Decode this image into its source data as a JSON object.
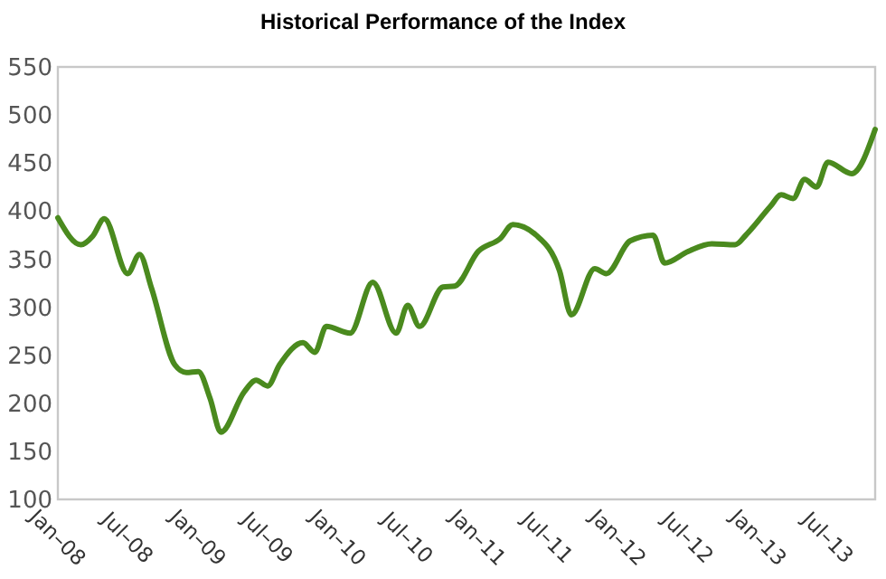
{
  "chart_data": {
    "type": "line",
    "title": "Historical Performance of the Index",
    "x": [
      "2008-01",
      "2008-03",
      "2008-04",
      "2008-05",
      "2008-07",
      "2008-08",
      "2008-09",
      "2008-11",
      "2008-12",
      "2009-01",
      "2009-02",
      "2009-03",
      "2009-05",
      "2009-06",
      "2009-07",
      "2009-08",
      "2009-10",
      "2009-11",
      "2009-12",
      "2010-02",
      "2010-04",
      "2010-06",
      "2010-07",
      "2010-08",
      "2010-10",
      "2010-11",
      "2011-01",
      "2011-03",
      "2011-04",
      "2011-06",
      "2011-08",
      "2011-09",
      "2011-11",
      "2011-12",
      "2012-02",
      "2012-04",
      "2012-05",
      "2012-07",
      "2012-09",
      "2012-11",
      "2012-12",
      "2013-02",
      "2013-03",
      "2013-04",
      "2013-05",
      "2013-06",
      "2013-07",
      "2013-09",
      "2013-11"
    ],
    "series": [
      {
        "color": "#4a8a1e",
        "values": [
          393,
          365,
          374,
          392,
          335,
          355,
          320,
          240,
          232,
          233,
          205,
          170,
          212,
          224,
          218,
          240,
          263,
          253,
          280,
          273,
          326,
          273,
          302,
          280,
          321,
          322,
          358,
          372,
          386,
          375,
          338,
          292,
          340,
          335,
          369,
          375,
          346,
          358,
          366,
          365,
          376,
          405,
          417,
          413,
          433,
          425,
          451,
          439,
          485
        ]
      }
    ],
    "xlim": [
      "2008-01",
      "2013-11"
    ],
    "xticks": [
      {
        "value": "2008-01",
        "label": "Jan–08"
      },
      {
        "value": "2008-07",
        "label": "Jul–08"
      },
      {
        "value": "2009-01",
        "label": "Jan–09"
      },
      {
        "value": "2009-07",
        "label": "Jul–09"
      },
      {
        "value": "2010-01",
        "label": "Jan–10"
      },
      {
        "value": "2010-07",
        "label": "Jul–10"
      },
      {
        "value": "2011-01",
        "label": "Jan–11"
      },
      {
        "value": "2011-07",
        "label": "Jul–11"
      },
      {
        "value": "2012-01",
        "label": "Jan–12"
      },
      {
        "value": "2012-07",
        "label": "Jul–12"
      },
      {
        "value": "2013-01",
        "label": "Jan–13"
      },
      {
        "value": "2013-07",
        "label": "Jul–13"
      }
    ],
    "ylim": [
      100,
      550
    ],
    "yticks": [
      100,
      150,
      200,
      250,
      300,
      350,
      400,
      450,
      500,
      550
    ],
    "grid": false,
    "line_style": "solid"
  }
}
